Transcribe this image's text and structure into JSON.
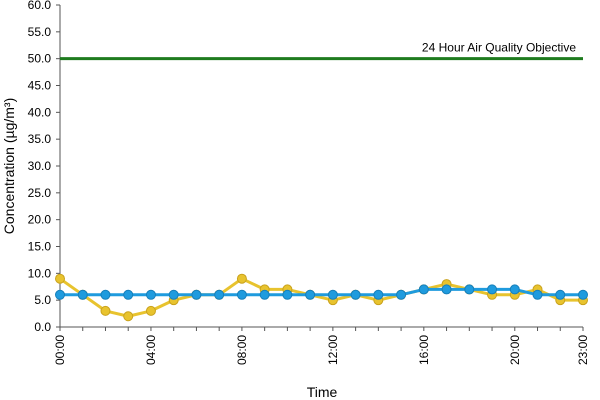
{
  "chart_data": {
    "type": "line",
    "title": "",
    "xlabel": "Time",
    "ylabel": "Concentration (µg/m³)",
    "ylim": [
      0,
      60
    ],
    "yticks": [
      "0.0",
      "5.0",
      "10.0",
      "15.0",
      "20.0",
      "25.0",
      "30.0",
      "35.0",
      "40.0",
      "45.0",
      "50.0",
      "55.0",
      "60.0"
    ],
    "x": [
      "00:00",
      "01:00",
      "02:00",
      "03:00",
      "04:00",
      "05:00",
      "06:00",
      "07:00",
      "08:00",
      "09:00",
      "10:00",
      "11:00",
      "12:00",
      "13:00",
      "14:00",
      "15:00",
      "16:00",
      "17:00",
      "18:00",
      "19:00",
      "20:00",
      "21:00",
      "22:00",
      "23:00"
    ],
    "xtick_labels": [
      "00:00",
      "04:00",
      "08:00",
      "12:00",
      "16:00",
      "20:00",
      "23:00"
    ],
    "series": [
      {
        "color": "#E8C32E",
        "values": [
          9,
          6,
          3,
          2,
          3,
          5,
          6,
          6,
          9,
          7,
          7,
          6,
          5,
          6,
          5,
          6,
          7,
          8,
          7,
          6,
          6,
          7,
          5,
          5
        ]
      },
      {
        "color": "#1F9BDE",
        "values": [
          6,
          6,
          6,
          6,
          6,
          6,
          6,
          6,
          6,
          6,
          6,
          6,
          6,
          6,
          6,
          6,
          7,
          7,
          7,
          7,
          7,
          6,
          6,
          6
        ]
      }
    ],
    "objective": {
      "value": 50,
      "label": "24 Hour Air Quality Objective",
      "color": "#1E7B1E"
    },
    "grid": false,
    "legend": "none"
  }
}
